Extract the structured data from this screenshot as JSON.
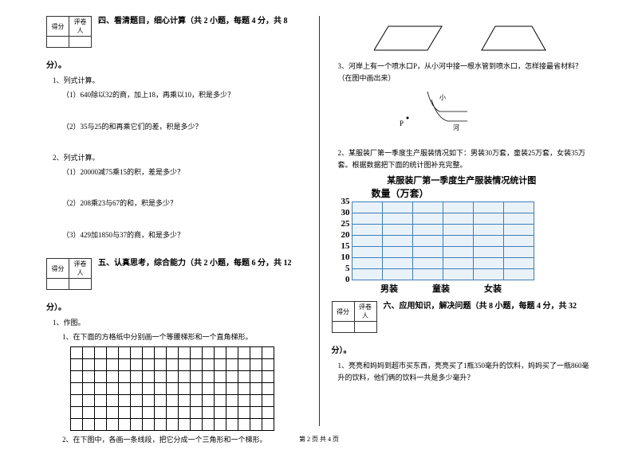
{
  "left": {
    "scoreHeader1": "得分",
    "scoreHeader2": "评卷人",
    "section4": "四、看清题目，细心计算（共 2 小题，每题 4 分，共 8",
    "fen": "分）。",
    "q1": "1、列式计算。",
    "q1_1": "（1）640除以32的商，加上18，再乘以10，积是多少？",
    "q1_2": "（2）35与25的和再乘它们的差，积是多少？",
    "q2": "2、列式计算。",
    "q2_1": "（1）20000减75乘15的积，差是多少？",
    "q2_2": "（2）208乘23与67的和，积是多少？",
    "q2_3": "（3）429加1850与37的商，和是多少？",
    "section5": "五、认真思考，综合能力（共 2 小题，每题 6 分，共 12",
    "q5_1": "1、作图。",
    "q5_1_1": "1、在下面的方格纸中分别画一个等腰梯形和一个直角梯形。",
    "q5_1_2": "2、在下图中，各画一条线段，把它分成一个三角形和一个梯形。",
    "grid": {
      "rows": 7,
      "cols": 17,
      "cell_size": 15,
      "border_color": "#000000"
    }
  },
  "right": {
    "scoreHeader1": "得分",
    "scoreHeader2": "评卷人",
    "shapes": {
      "parallelogram": {
        "color": "#000000"
      },
      "trapezoid": {
        "color": "#000000"
      }
    },
    "q3": "3、河岸上有一个喷水口P，从小河中接一根水管到喷水口，怎样接最省材料？（在图中画出来）",
    "diagram": {
      "label_p": "P",
      "label_xiao": "小",
      "label_he": "河"
    },
    "q2prime": "2、某服装厂第一季度生产服装情况如下：男装30万套，童装25万套，女装35万套。根据数据把下面的统计图补充完整。",
    "chart": {
      "title": "某服装厂第一季度生产服装情况统计图",
      "ylabel": "数量（万套）",
      "yticks": [
        "35",
        "30",
        "25",
        "20",
        "15",
        "10",
        "5",
        "0"
      ],
      "categories": [
        "男装",
        "童装",
        "女装"
      ],
      "rows": 7,
      "cols": 6,
      "cell_color": "#eaf2f9",
      "grid_color": "#3b7db8",
      "font_size": 11
    },
    "section6": "六、应用知识，解决问题（共 8 小题，每题 4 分，共 32",
    "fen": "分）。",
    "q6_1": "1、亮亮和妈妈到超市买东西，亮亮买了1瓶350毫升的饮料，妈妈买了一瓶860毫升的饮料，他们俩的饮料一共是多少毫升？"
  },
  "footer": "第 2 页 共 4 页"
}
